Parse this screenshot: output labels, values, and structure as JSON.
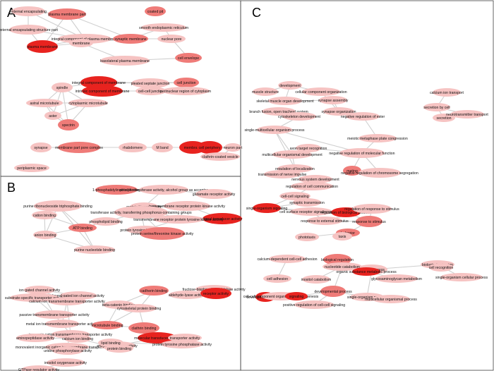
{
  "panels": [
    {
      "letter": "A",
      "nodes": [
        {
          "label": "external encapsulating",
          "shade": "light"
        },
        {
          "label": "plasma membrane part",
          "shade": "mid"
        },
        {
          "label": "coated pit",
          "shade": "mid"
        },
        {
          "label": "external encapsulating structure part",
          "shade": "light"
        },
        {
          "label": "integral component of plasma membrane",
          "shade": "light"
        },
        {
          "label": "synaptic membrane",
          "shade": "mid"
        },
        {
          "label": "smooth endoplasmic reticulum",
          "shade": "light"
        },
        {
          "label": "nuclear pore",
          "shade": "light"
        },
        {
          "label": "plasma membrane",
          "shade": "dark"
        },
        {
          "label": "membrane",
          "shade": "light"
        },
        {
          "label": "basolateral plasma membrane",
          "shade": "light"
        },
        {
          "label": "cell envelope",
          "shade": "mid"
        },
        {
          "label": "spindle",
          "shade": "light"
        },
        {
          "label": "integral component of membrane",
          "shade": "dark"
        },
        {
          "label": "pleated septate junction",
          "shade": "light"
        },
        {
          "label": "cell junction",
          "shade": "mid"
        },
        {
          "label": "intrinsic component of membrane",
          "shade": "dark"
        },
        {
          "label": "cell-cell junction",
          "shade": "light"
        },
        {
          "label": "perinuclear region of cytoplasm",
          "shade": "light"
        },
        {
          "label": "astral microtubule",
          "shade": "light"
        },
        {
          "label": "cytoplasmic microtubule",
          "shade": "light"
        },
        {
          "label": "aster",
          "shade": "light"
        },
        {
          "label": "spectrin",
          "shade": "mid"
        },
        {
          "label": "synapse",
          "shade": "light"
        },
        {
          "label": "membrane part pore complex",
          "shade": "mid"
        },
        {
          "label": "rhabdomere",
          "shade": "light"
        },
        {
          "label": "M band",
          "shade": "light"
        },
        {
          "label": "membrane",
          "shade": "dark"
        },
        {
          "label": "cell periphery",
          "shade": "dark"
        },
        {
          "label": "neuron part",
          "shade": "light"
        },
        {
          "label": "clathrin-coated vesicle",
          "shade": "light"
        },
        {
          "label": "periplasmic space",
          "shade": "light"
        }
      ]
    },
    {
      "letter": "B",
      "nodes": [
        {
          "label": "1-phosphatidylinositol binding",
          "shade": "mid"
        },
        {
          "label": "phosphotransferase activity, alcohol group as acceptor",
          "shade": "light"
        },
        {
          "label": "glutamate receptor activity",
          "shade": "light"
        },
        {
          "label": "purine ribonucleoside triphosphate binding",
          "shade": "light"
        },
        {
          "label": "protein kinase activity",
          "shade": "light"
        },
        {
          "label": "transmembrane receptor protein kinase activity",
          "shade": "light"
        },
        {
          "label": "cation binding",
          "shade": "light"
        },
        {
          "label": "transferase activity, transferring phosphorus-containing groups",
          "shade": "light"
        },
        {
          "label": "phospholipid binding",
          "shade": "light"
        },
        {
          "label": "signal transducer activity",
          "shade": "dark"
        },
        {
          "label": "ATP binding",
          "shade": "mid"
        },
        {
          "label": "transmembrane receptor protein tyrosine kinase activity",
          "shade": "light"
        },
        {
          "label": "protein tyrosine kinase activity",
          "shade": "light"
        },
        {
          "label": "protein serine/threonine kinase activity",
          "shade": "mid"
        },
        {
          "label": "anion binding",
          "shade": "light"
        },
        {
          "label": "purine nucleotide binding",
          "shade": "light"
        },
        {
          "label": "ion gated channel activity",
          "shade": "light"
        },
        {
          "label": "ligand-gated ion channel activity",
          "shade": "light"
        },
        {
          "label": "cadherin binding",
          "shade": "mid"
        },
        {
          "label": "fructose-bisphosphate aldolase activity",
          "shade": "light"
        },
        {
          "label": "substrate-specific transporter activity",
          "shade": "light"
        },
        {
          "label": "calcium ion transmembrane transporter activity",
          "shade": "light"
        },
        {
          "label": "beta-catenin binding",
          "shade": "light"
        },
        {
          "label": "aldehyde-lyase activity",
          "shade": "light"
        },
        {
          "label": "receptor activity",
          "shade": "dark"
        },
        {
          "label": "passive transmembrane transporter activity",
          "shade": "light"
        },
        {
          "label": "cytoskeletal protein binding",
          "shade": "light"
        },
        {
          "label": "metal ion transmembrane transporter activity",
          "shade": "light"
        },
        {
          "label": "inorganic cation transmembrane transporter activity",
          "shade": "light"
        },
        {
          "label": "microtubule binding",
          "shade": "mid"
        },
        {
          "label": "clathrin binding",
          "shade": "mid"
        },
        {
          "label": "monovalent inorganic cation transmembrane transporter activity",
          "shade": "light"
        },
        {
          "label": "uridine phosphorylase activity",
          "shade": "light"
        },
        {
          "label": "enzyme regulator activity",
          "shade": "light"
        },
        {
          "label": "molecular transducer activity",
          "shade": "dark"
        },
        {
          "label": "transporter activity",
          "shade": "light"
        },
        {
          "label": "aminopeptidase activity",
          "shade": "light"
        },
        {
          "label": "calcium ion binding",
          "shade": "light"
        },
        {
          "label": "protein binding",
          "shade": "light"
        },
        {
          "label": "lipid binding",
          "shade": "light"
        },
        {
          "label": "protein tyrosine phosphatase activity",
          "shade": "light"
        },
        {
          "label": "inositol oxygenase activity",
          "shade": "light"
        },
        {
          "label": "GTPase regulator activity",
          "shade": "light"
        }
      ]
    },
    {
      "letter": "C",
      "nodes": [
        {
          "label": "development",
          "shade": "light"
        },
        {
          "label": "muscle structure",
          "shade": "light"
        },
        {
          "label": "cellular component organization",
          "shade": "light"
        },
        {
          "label": "calcium ion transport",
          "shade": "light"
        },
        {
          "label": "skeletal muscle organ development",
          "shade": "light"
        },
        {
          "label": "synapse assembly",
          "shade": "light"
        },
        {
          "label": "synapse organization",
          "shade": "light"
        },
        {
          "label": "secretion by cell",
          "shade": "light"
        },
        {
          "label": "branch fusion, open tracheal system",
          "shade": "light"
        },
        {
          "label": "cytoskeleton development",
          "shade": "light"
        },
        {
          "label": "negative regulation of ester",
          "shade": "light"
        },
        {
          "label": "secretion",
          "shade": "light"
        },
        {
          "label": "neurotransmitter transport",
          "shade": "light"
        },
        {
          "label": "single-multicellular organism process",
          "shade": "light"
        },
        {
          "label": "meiotic metaphase plate congression",
          "shade": "light"
        },
        {
          "label": "axon target recognition",
          "shade": "light"
        },
        {
          "label": "negative regulation of molecular function",
          "shade": "light"
        },
        {
          "label": "multicellular organismal development",
          "shade": "light"
        },
        {
          "label": "regulation of localization",
          "shade": "light"
        },
        {
          "label": "transmission of nerve impulse",
          "shade": "light"
        },
        {
          "label": "nervous system development",
          "shade": "light"
        },
        {
          "label": "mating",
          "shade": "mid"
        },
        {
          "label": "negative regulation of chromosome segregation",
          "shade": "light"
        },
        {
          "label": "regulation of cell communication",
          "shade": "light"
        },
        {
          "label": "cell-cell signaling",
          "shade": "light"
        },
        {
          "label": "synaptic transmission",
          "shade": "light"
        },
        {
          "label": "single-organism signaling",
          "shade": "dark"
        },
        {
          "label": "cell surface receptor signaling pathway",
          "shade": "light"
        },
        {
          "label": "regulation of biological process",
          "shade": "dark"
        },
        {
          "label": "regulation of response to stimulus",
          "shade": "light"
        },
        {
          "label": "response to external stimulus",
          "shade": "light"
        },
        {
          "label": "response to stimulus",
          "shade": "mid"
        },
        {
          "label": "behavior",
          "shade": "mid"
        },
        {
          "label": "phototaxis",
          "shade": "light"
        },
        {
          "label": "taxis",
          "shade": "light"
        },
        {
          "label": "biological regulation",
          "shade": "mid"
        },
        {
          "label": "cellular process",
          "shade": "light"
        },
        {
          "label": "calcium-dependent cell-cell adhesion",
          "shade": "light"
        },
        {
          "label": "biological adhesion",
          "shade": "light"
        },
        {
          "label": "cell recognition",
          "shade": "light"
        },
        {
          "label": "nucleotide catabolism",
          "shade": "light"
        },
        {
          "label": "organic substance metabolic process",
          "shade": "dark"
        },
        {
          "label": "single-organism cellular process",
          "shade": "light"
        },
        {
          "label": "cell adhesion",
          "shade": "light"
        },
        {
          "label": "inositol catabolism",
          "shade": "light"
        },
        {
          "label": "glycosaminoglycan metabolism",
          "shade": "light"
        },
        {
          "label": "developmental process",
          "shade": "dark"
        },
        {
          "label": "cell-cell component organization or biogenesis",
          "shade": "light"
        },
        {
          "label": "signaling",
          "shade": "dark"
        },
        {
          "label": "single-organism process",
          "shade": "light"
        },
        {
          "label": "developmental process",
          "shade": "mid"
        },
        {
          "label": "multicellular organismal process",
          "shade": "light"
        },
        {
          "label": "positive regulation of cell-cell signaling",
          "shade": "light"
        }
      ]
    }
  ],
  "colors": {
    "dark": "#e8231f",
    "mid": "#ef7b78",
    "light": "#f6c3c2",
    "edge": "#cfcfcf"
  }
}
